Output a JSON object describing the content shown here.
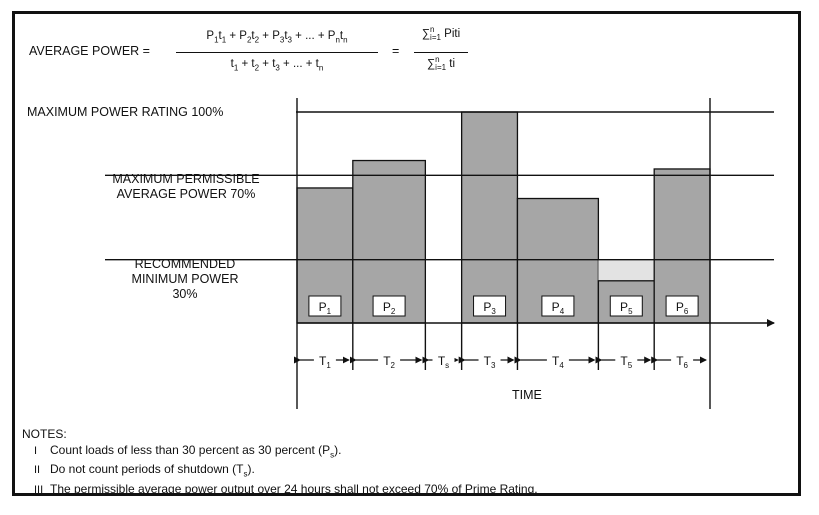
{
  "formula": {
    "lhs": "AVERAGE POWER =",
    "num_terms": [
      {
        "p": "P",
        "ps": "1",
        "t": "t",
        "ts": "1"
      },
      {
        "p": "P",
        "ps": "2",
        "t": "t",
        "ts": "2"
      },
      {
        "p": "P",
        "ps": "3",
        "t": "t",
        "ts": "3"
      }
    ],
    "num_dots": "+ ... +",
    "num_last": {
      "p": "P",
      "ps": "n",
      "t": "t",
      "ts": "n"
    },
    "den_terms": [
      {
        "t": "t",
        "s": "1"
      },
      {
        "t": "t",
        "s": "2"
      },
      {
        "t": "t",
        "s": "3"
      }
    ],
    "den_dots": "+ ... +",
    "den_last": {
      "t": "t",
      "s": "n"
    },
    "equals": "=",
    "sum_sign": "∑",
    "sum_upper": "n",
    "sum_lower": "i=1",
    "sum_num_term": "Piti",
    "sum_den_term": "ti"
  },
  "levels": {
    "max_label": "MAXIMUM POWER RATING 100%",
    "avg_label_line1": "MAXIMUM PERMISSIBLE",
    "avg_label_line2": "AVERAGE POWER 70%",
    "min_label_line1": "RECOMMENDED",
    "min_label_line2": "MINIMUM POWER",
    "min_label_line3": "30%"
  },
  "chart_data": {
    "type": "bar",
    "reference_lines": [
      {
        "level_percent": 100,
        "label": "MAXIMUM POWER RATING 100%"
      },
      {
        "level_percent": 70,
        "label": "MAXIMUM PERMISSIBLE AVERAGE POWER 70%"
      },
      {
        "level_percent": 30,
        "label": "RECOMMENDED MINIMUM POWER 30%"
      }
    ],
    "segments": [
      {
        "label": "P",
        "sub": "1",
        "period": "T",
        "period_sub": "1",
        "power_percent": 64,
        "duration": 1,
        "shutdown": false
      },
      {
        "label": "P",
        "sub": "2",
        "period": "T",
        "period_sub": "2",
        "power_percent": 77,
        "duration": 1.3,
        "shutdown": false
      },
      {
        "label": "",
        "sub": "",
        "period": "T",
        "period_sub": "s",
        "power_percent": 0,
        "duration": 0.65,
        "shutdown": true
      },
      {
        "label": "P",
        "sub": "3",
        "period": "T",
        "period_sub": "3",
        "power_percent": 100,
        "duration": 1,
        "shutdown": false
      },
      {
        "label": "P",
        "sub": "4",
        "period": "T",
        "period_sub": "4",
        "power_percent": 59,
        "duration": 1.45,
        "shutdown": false
      },
      {
        "label": "P",
        "sub": "5",
        "period": "T",
        "period_sub": "5",
        "power_percent": 20,
        "duration": 1,
        "shutdown": false
      },
      {
        "label": "P",
        "sub": "6",
        "period": "T",
        "period_sub": "6",
        "power_percent": 73,
        "duration": 1,
        "shutdown": false
      }
    ],
    "xlabel": "TIME",
    "ylim": [
      0,
      100
    ],
    "colors": {
      "bar": "#a6a6a6",
      "low_fill": "#e3e3e3",
      "line": "#111111",
      "label_box": "#ffffff"
    }
  },
  "notes": {
    "heading": "NOTES:",
    "items": [
      {
        "num": "I",
        "text": "Count loads of less than 30 percent as 30 percent (P",
        "sub": "s",
        "after": ")."
      },
      {
        "num": "II",
        "text": "Do not count periods of shutdown (T",
        "sub": "s",
        "after": ")."
      },
      {
        "num": "III",
        "text": "The permissible average power output over 24 hours shall not exceed 70% of Prime Rating.",
        "sub": "",
        "after": ""
      }
    ]
  }
}
